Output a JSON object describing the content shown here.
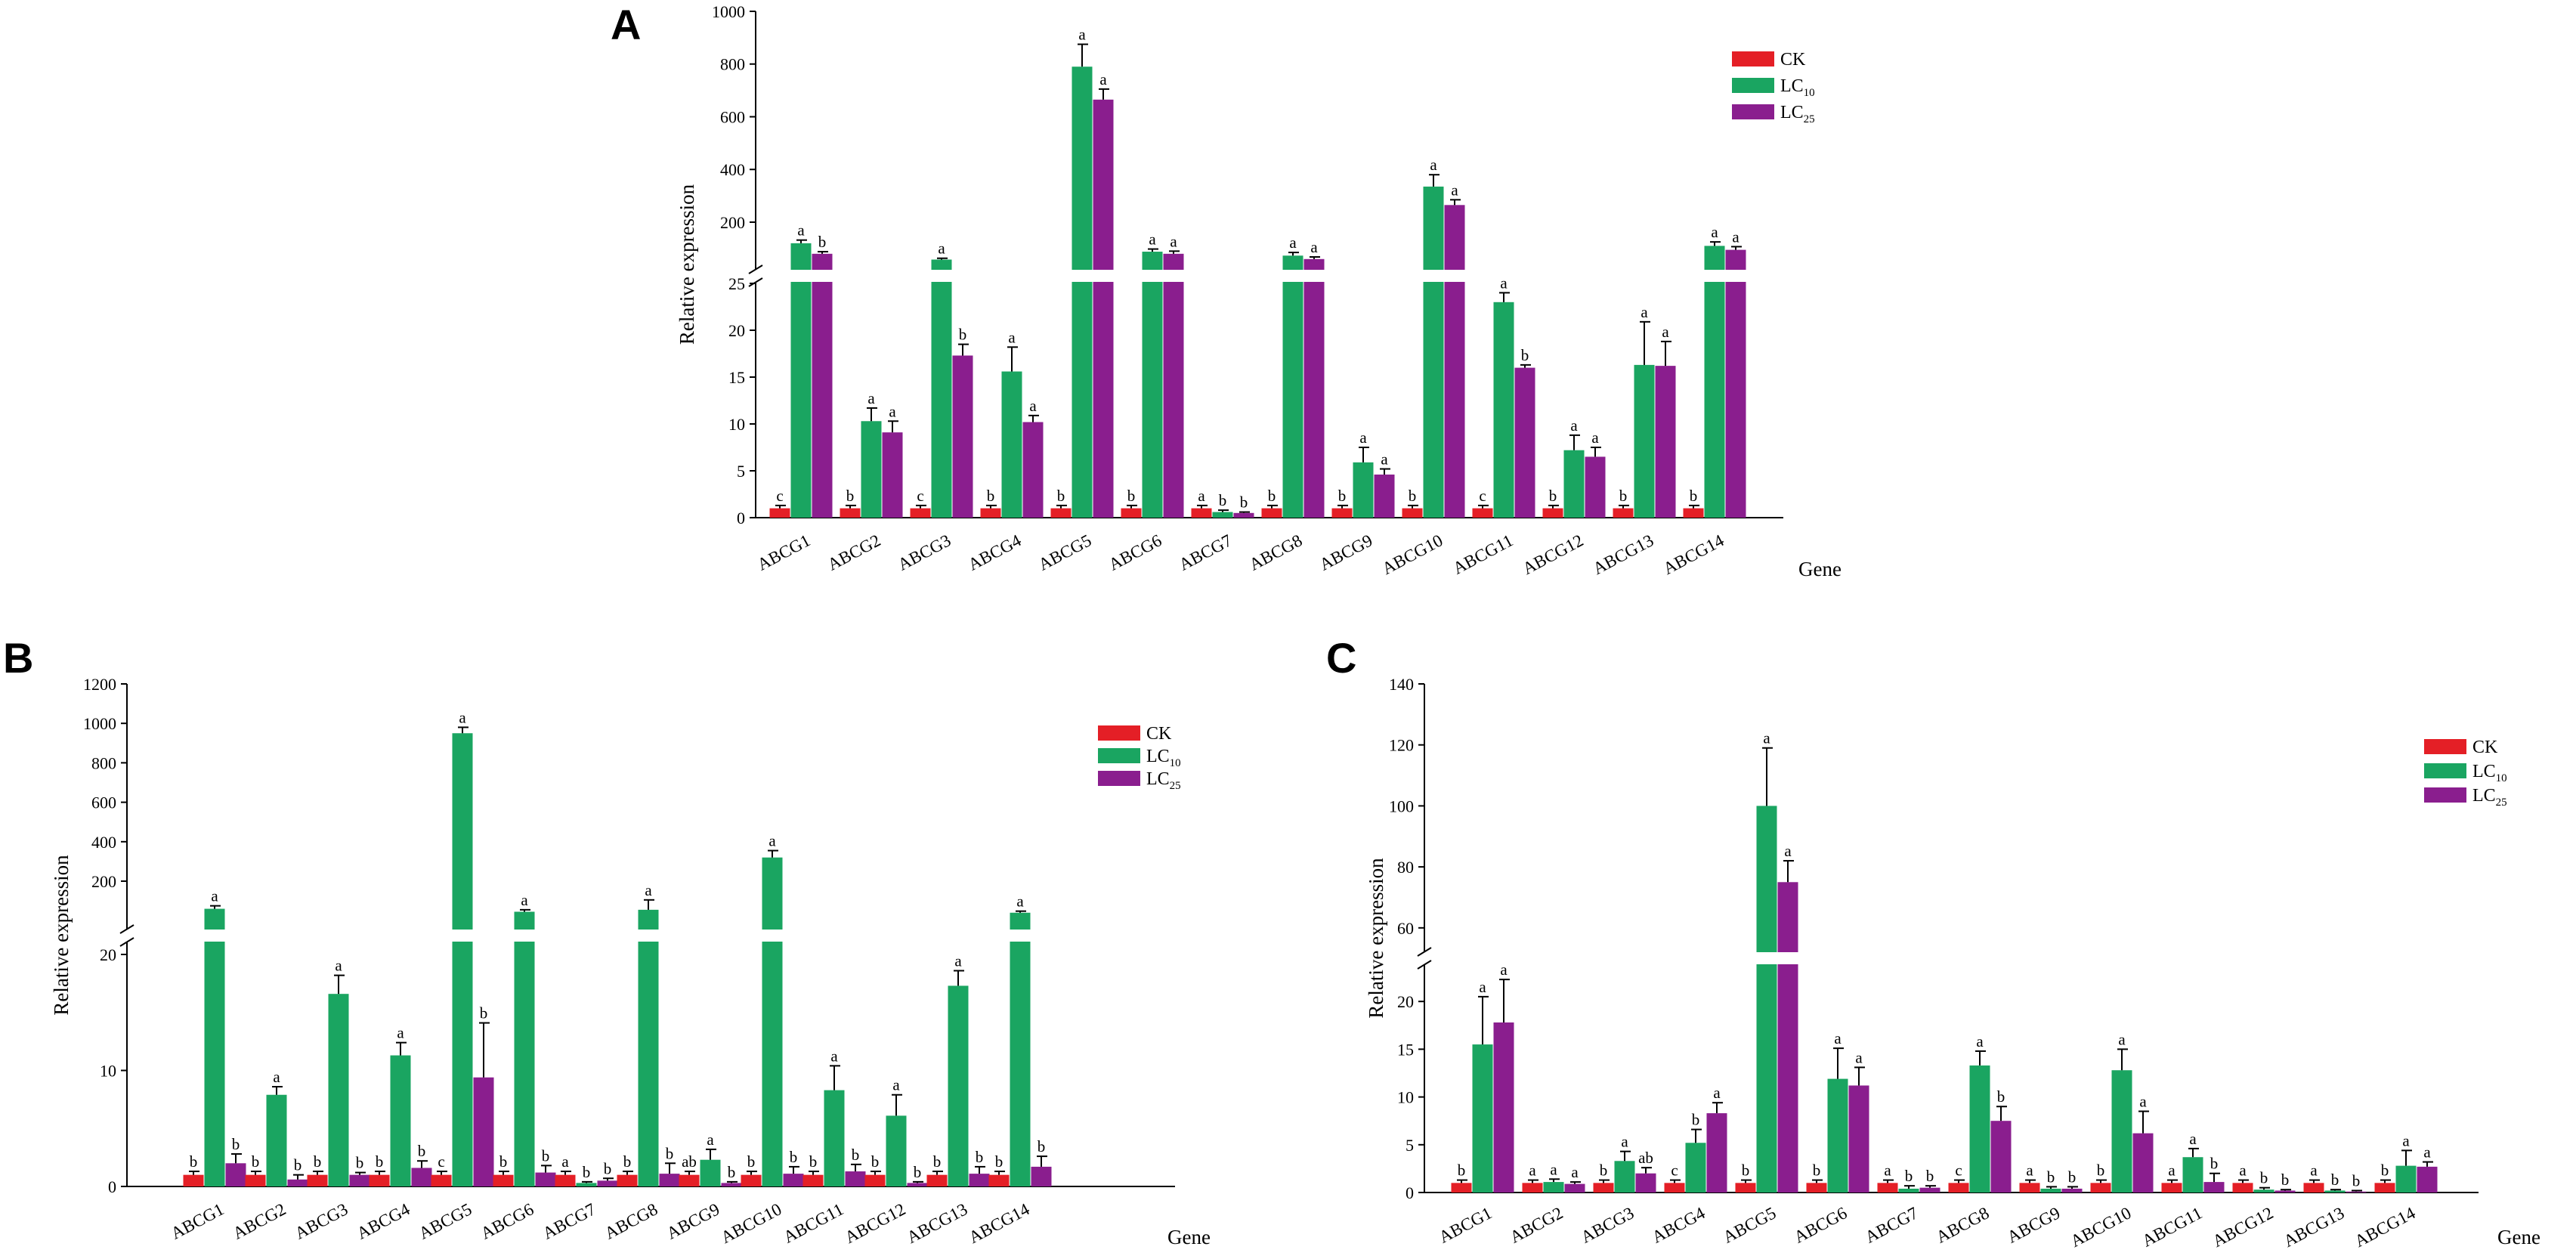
{
  "figure": {
    "series_colors": {
      "CK": "#e41f26",
      "LC10": "#1aa561",
      "LC25": "#8a1e8e"
    },
    "legend_labels": [
      {
        "main": "CK",
        "sub": ""
      },
      {
        "main": "LC",
        "sub": "10"
      },
      {
        "main": "LC",
        "sub": "25"
      }
    ]
  },
  "chart_data": [
    {
      "panel": "A",
      "type": "bar",
      "ylabel": "Relative expression",
      "xlabel": "Gene",
      "axis_break": {
        "lower_range": [
          0,
          25
        ],
        "upper_range": [
          25,
          1000
        ]
      },
      "lower_ticks": [
        "0",
        "5",
        "10",
        "15",
        "20",
        "25"
      ],
      "upper_ticks": [
        "200",
        "400",
        "600",
        "800",
        "1000"
      ],
      "categories": [
        "ABCG1",
        "ABCG2",
        "ABCG3",
        "ABCG4",
        "ABCG5",
        "ABCG6",
        "ABCG7",
        "ABCG8",
        "ABCG9",
        "ABCG10",
        "ABCG11",
        "ABCG12",
        "ABCG13",
        "ABCG14"
      ],
      "legend_position": "top-right",
      "series": [
        {
          "name": "CK",
          "values": [
            1,
            1,
            1,
            1,
            1,
            1,
            1,
            1,
            1,
            1,
            1,
            1,
            1,
            1
          ],
          "errors": [
            0.3,
            0.3,
            0.3,
            0.3,
            0.3,
            0.3,
            0.3,
            0.3,
            0.3,
            0.3,
            0.3,
            0.3,
            0.3,
            0.3
          ],
          "letters": [
            "c",
            "b",
            "c",
            "b",
            "b",
            "b",
            "a",
            "b",
            "b",
            "b",
            "c",
            "b",
            "b",
            "b"
          ]
        },
        {
          "name": "LC10",
          "values": [
            120,
            10.3,
            58,
            15.6,
            790,
            88,
            0.6,
            73,
            5.9,
            335,
            23,
            7.2,
            16.3,
            110
          ],
          "errors": [
            12,
            1.4,
            5,
            2.6,
            85,
            10,
            0.2,
            12,
            1.6,
            45,
            1,
            1.6,
            4.6,
            15
          ],
          "letters": [
            "a",
            "a",
            "a",
            "a",
            "a",
            "a",
            "b",
            "a",
            "a",
            "a",
            "a",
            "a",
            "a",
            "a"
          ]
        },
        {
          "name": "LC25",
          "values": [
            80,
            9.1,
            17.3,
            10.2,
            665,
            80,
            0.5,
            60,
            4.6,
            265,
            16,
            6.5,
            16.2,
            95
          ],
          "errors": [
            8,
            1.2,
            1.2,
            0.7,
            40,
            10,
            0.1,
            8,
            0.6,
            20,
            0.3,
            1,
            2.6,
            12
          ],
          "letters": [
            "b",
            "a",
            "b",
            "a",
            "a",
            "a",
            "b",
            "a",
            "a",
            "a",
            "b",
            "a",
            "a",
            "a"
          ]
        }
      ]
    },
    {
      "panel": "B",
      "type": "bar",
      "ylabel": "Relative expression",
      "xlabel": "Gene",
      "axis_break": {
        "lower_range": [
          0,
          20
        ],
        "upper_range": [
          20,
          1200
        ]
      },
      "lower_ticks": [
        "0",
        "10",
        "20"
      ],
      "upper_ticks": [
        "200",
        "400",
        "600",
        "800",
        "1000",
        "1200"
      ],
      "categories": [
        "ABCG1",
        "ABCG2",
        "ABCG3",
        "ABCG4",
        "ABCG5",
        "ABCG6",
        "ABCG7",
        "ABCG8",
        "ABCG9",
        "ABCG10",
        "ABCG11",
        "ABCG12",
        "ABCG13",
        "ABCG14"
      ],
      "legend_position": "top-right",
      "series": [
        {
          "name": "CK",
          "values": [
            1,
            1,
            1,
            1,
            1,
            1,
            1,
            1,
            1,
            1,
            1,
            1,
            1,
            1
          ],
          "errors": [
            0.3,
            0.3,
            0.3,
            0.3,
            0.3,
            0.3,
            0.3,
            0.3,
            0.3,
            0.3,
            0.3,
            0.3,
            0.3,
            0.3
          ],
          "letters": [
            "b",
            "b",
            "b",
            "b",
            "c",
            "b",
            "a",
            "b",
            "ab",
            "b",
            "b",
            "b",
            "b",
            "b"
          ]
        },
        {
          "name": "LC10",
          "values": [
            60,
            7.9,
            16.6,
            11.3,
            950,
            45,
            0.3,
            55,
            2.3,
            320,
            8.3,
            6.1,
            17.3,
            40
          ],
          "errors": [
            15,
            0.7,
            1.6,
            1.1,
            30,
            10,
            0.1,
            50,
            0.9,
            35,
            2.1,
            1.8,
            1.3,
            8
          ],
          "letters": [
            "a",
            "a",
            "a",
            "a",
            "a",
            "a",
            "b",
            "a",
            "a",
            "a",
            "a",
            "a",
            "a",
            "a"
          ]
        },
        {
          "name": "LC25",
          "values": [
            2,
            0.6,
            1,
            1.6,
            9.4,
            1.2,
            0.5,
            1.1,
            0.3,
            1.1,
            1.3,
            0.3,
            1.1,
            1.7
          ],
          "errors": [
            0.8,
            0.4,
            0.2,
            0.6,
            4.7,
            0.6,
            0.2,
            0.9,
            0.1,
            0.6,
            0.6,
            0.1,
            0.6,
            0.9
          ],
          "letters": [
            "b",
            "b",
            "b",
            "b",
            "b",
            "b",
            "b",
            "b",
            "b",
            "b",
            "b",
            "b",
            "b",
            "b"
          ]
        }
      ]
    },
    {
      "panel": "C",
      "type": "bar",
      "ylabel": "Relative expression",
      "xlabel": "Gene",
      "axis_break": {
        "lower_range": [
          0,
          25
        ],
        "upper_range": [
          55,
          140
        ]
      },
      "lower_ticks": [
        "0",
        "5",
        "10",
        "15",
        "20"
      ],
      "upper_ticks": [
        "60",
        "80",
        "100",
        "120",
        "140"
      ],
      "categories": [
        "ABCG1",
        "ABCG2",
        "ABCG3",
        "ABCG4",
        "ABCG5",
        "ABCG6",
        "ABCG7",
        "ABCG8",
        "ABCG9",
        "ABCG10",
        "ABCG11",
        "ABCG12",
        "ABCG13",
        "ABCG14"
      ],
      "legend_position": "top-right",
      "series": [
        {
          "name": "CK",
          "values": [
            1,
            1,
            1,
            1,
            1,
            1,
            1,
            1,
            1,
            1,
            1,
            1,
            1,
            1
          ],
          "errors": [
            0.3,
            0.3,
            0.3,
            0.3,
            0.3,
            0.3,
            0.3,
            0.3,
            0.3,
            0.3,
            0.3,
            0.3,
            0.3,
            0.3
          ],
          "letters": [
            "b",
            "a",
            "b",
            "c",
            "b",
            "b",
            "a",
            "c",
            "a",
            "b",
            "a",
            "a",
            "a",
            "b"
          ]
        },
        {
          "name": "LC10",
          "values": [
            15.5,
            1.1,
            3.3,
            5.2,
            100,
            11.9,
            0.4,
            13.3,
            0.4,
            12.8,
            3.7,
            0.3,
            0.2,
            2.8
          ],
          "errors": [
            5,
            0.3,
            1,
            1.4,
            19,
            3.2,
            0.3,
            1.5,
            0.2,
            2.2,
            0.9,
            0.2,
            0.1,
            1.6
          ],
          "letters": [
            "a",
            "a",
            "a",
            "b",
            "a",
            "a",
            "b",
            "a",
            "b",
            "a",
            "a",
            "b",
            "b",
            "a"
          ]
        },
        {
          "name": "LC25",
          "values": [
            17.8,
            0.9,
            2,
            8.3,
            75,
            11.2,
            0.5,
            7.5,
            0.4,
            6.2,
            1.1,
            0.2,
            0.1,
            2.7
          ],
          "errors": [
            4.5,
            0.2,
            0.6,
            1.1,
            7,
            1.9,
            0.2,
            1.5,
            0.2,
            2.3,
            0.9,
            0.1,
            0.1,
            0.5
          ],
          "letters": [
            "a",
            "a",
            "ab",
            "a",
            "a",
            "a",
            "b",
            "b",
            "b",
            "a",
            "b",
            "b",
            "b",
            "a"
          ]
        }
      ]
    }
  ]
}
